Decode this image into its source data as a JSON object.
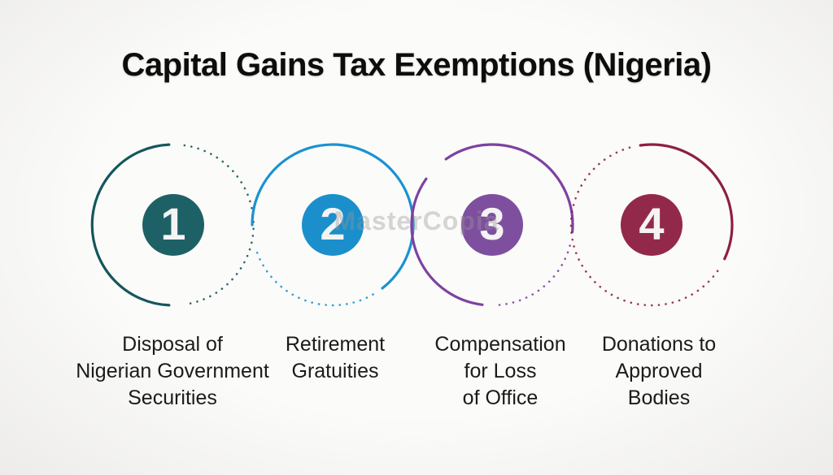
{
  "page": {
    "title": "Capital Gains Tax Exemptions (Nigeria)",
    "watermark": "MasterCopia",
    "background_color": "#f4f3f1",
    "text_color": "#1b1b1b"
  },
  "items": [
    {
      "number": "1",
      "color": "#1d6166",
      "ring_color": "#15565d",
      "lines": [
        "Disposal of",
        "Nigerian Government",
        "Securities"
      ]
    },
    {
      "number": "2",
      "color": "#1b8fcb",
      "ring_color": "#1a92d1",
      "lines": [
        "Retirement",
        "Gratuities"
      ]
    },
    {
      "number": "3",
      "color": "#7e4f9f",
      "ring_color": "#7c42a1",
      "lines": [
        "Compensation",
        "for Loss",
        "of Office"
      ]
    },
    {
      "number": "4",
      "color": "#93294a",
      "ring_color": "#8e1f40",
      "lines": [
        "Donations to",
        "Approved",
        "Bodies"
      ]
    }
  ]
}
